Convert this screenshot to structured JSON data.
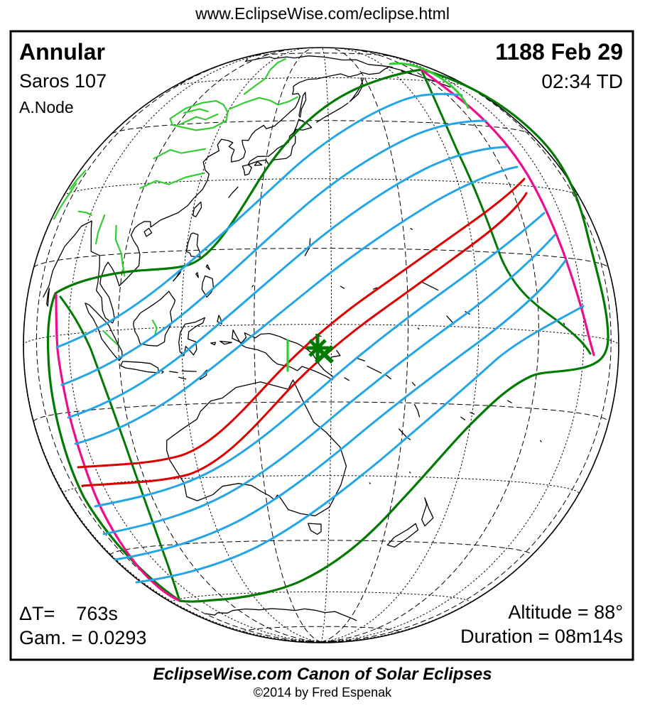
{
  "header": {
    "url": "www.EclipseWise.com/eclipse.html"
  },
  "map": {
    "eclipse_type": "Annular",
    "saros": "Saros 107",
    "node": "A.Node",
    "date": "1188 Feb 29",
    "time": "02:34 TD",
    "delta_t": "ΔT=    763s",
    "gamma": "Gam. = 0.0293",
    "altitude": "Altitude = 88°",
    "duration": "Duration = 08m14s"
  },
  "footer": {
    "title": "EclipseWise.com Canon of Solar Eclipses",
    "copyright": "©2014 by Fred Espenak"
  },
  "colors": {
    "penumbra_limit_green": "#007a00",
    "river_light_green": "#33cc33",
    "magnitude_contour_cyan": "#24a5e4",
    "sunrise_sunset_magenta": "#ee0d8e",
    "central_path_red": "#dd0000",
    "coast_black": "#000000",
    "background": "#ffffff"
  },
  "marker": {
    "greatest_eclipse_symbol": "asterisk",
    "greatest_duration_symbol": "x-cross"
  }
}
